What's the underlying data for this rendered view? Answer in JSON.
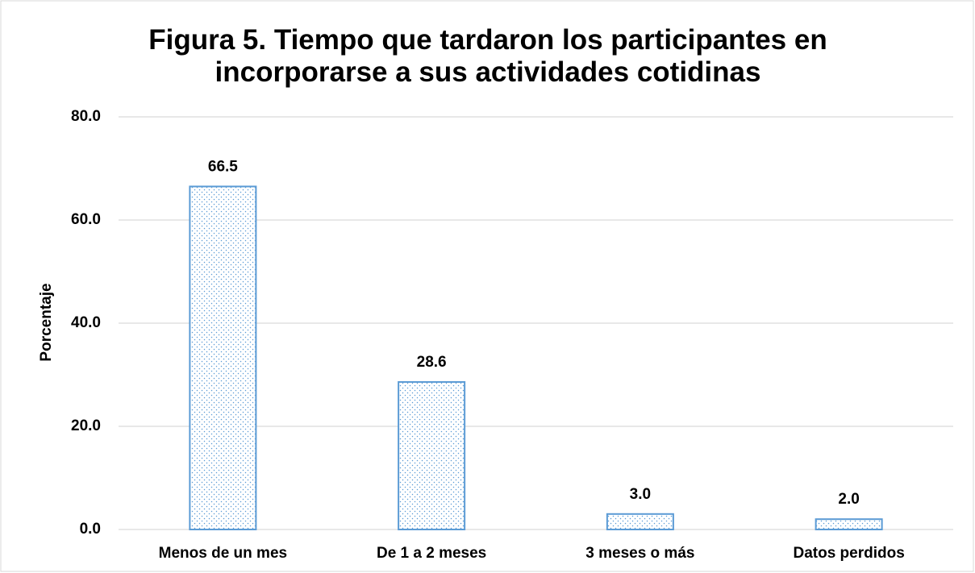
{
  "chart_data": {
    "type": "bar",
    "title": "Figura 5. Tiempo que tardaron los participantes en incorporarse a sus actividades cotidinas",
    "ylabel": "Porcentaje",
    "categories": [
      "Menos de un mes",
      "De 1 a 2 meses",
      "3 meses o más",
      "Datos perdidos"
    ],
    "values": [
      66.5,
      28.6,
      3,
      2
    ],
    "value_labels": [
      "66.5",
      "28.6",
      "3.0",
      "2.0"
    ],
    "color": "#5b9bd5",
    "ylim": [
      0,
      80
    ],
    "yticks": [
      {
        "value": 0,
        "label": "0.0"
      },
      {
        "value": 20,
        "label": "20.0"
      },
      {
        "value": 40,
        "label": "40.0"
      },
      {
        "value": 60,
        "label": "60.0"
      },
      {
        "value": 80,
        "label": "80.0"
      }
    ],
    "grid": true
  }
}
